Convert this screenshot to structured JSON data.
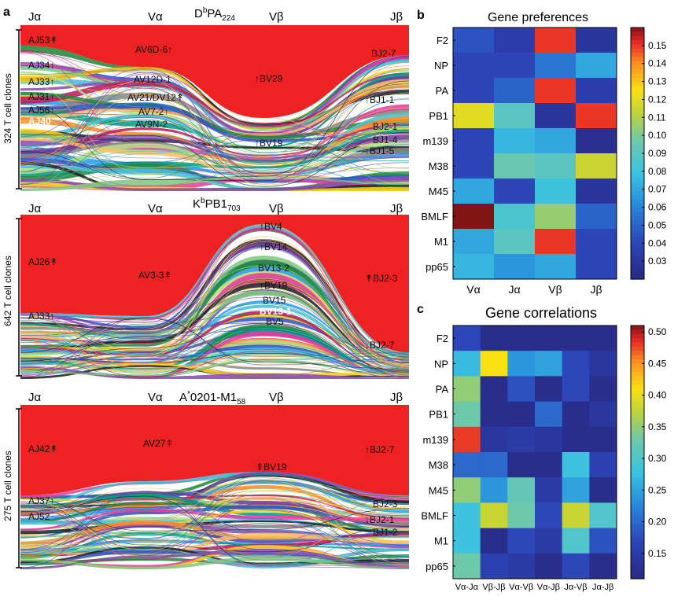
{
  "panel_a": {
    "letter": "a",
    "panels": [
      {
        "title_main": "D",
        "title_sup": "b",
        "title_rest": "PA",
        "title_sub": "224",
        "columns": [
          "Jα",
          "Vα",
          "Vβ",
          "Jβ"
        ],
        "ylabel": "324 T cell clones",
        "labels": [
          {
            "col": "Ja",
            "text": "AJ53",
            "arrows": "↟"
          },
          {
            "col": "Ja",
            "text": "AJ34",
            "arrows": "↑"
          },
          {
            "col": "Ja",
            "text": "AJ33",
            "arrows": "↑"
          },
          {
            "col": "Ja",
            "text": "AJ31",
            "arrows": "↑"
          },
          {
            "col": "Ja",
            "text": "AJ56",
            "arrows": "↑"
          },
          {
            "col": "Ja",
            "text": "AJ40",
            "arrows": ""
          },
          {
            "col": "Va",
            "text": "AV6D-6",
            "arrows": "↑"
          },
          {
            "col": "Va",
            "text": "AV12D-1",
            "arrows": ""
          },
          {
            "col": "Va",
            "text": "AV21/DV12",
            "arrows": "↟"
          },
          {
            "col": "Va",
            "text": "AV7-2",
            "arrows": "↑"
          },
          {
            "col": "Va",
            "text": "AV9N-2",
            "arrows": ""
          },
          {
            "col": "Vb",
            "text": "BV29",
            "arrows": "↑"
          },
          {
            "col": "Vb",
            "text": "BV19",
            "arrows": "↑"
          },
          {
            "col": "Jb",
            "text": "BJ2-7",
            "arrows": ""
          },
          {
            "col": "Jb",
            "text": "BJ1-1",
            "arrows": "↑"
          },
          {
            "col": "Jb",
            "text": "BJ2-1",
            "arrows": ""
          },
          {
            "col": "Jb",
            "text": "BJ1-4",
            "arrows": ""
          },
          {
            "col": "Jb",
            "text": "BJ1-5",
            "arrows": "↑"
          }
        ]
      },
      {
        "title_main": "K",
        "title_sup": "b",
        "title_rest": "PB1",
        "title_sub": "703",
        "columns": [
          "Jα",
          "Vα",
          "Vβ",
          "Jβ"
        ],
        "ylabel": "642 T cell clones",
        "labels": [
          {
            "col": "Ja",
            "text": "AJ26",
            "arrows": "↟"
          },
          {
            "col": "Ja",
            "text": "AJ33",
            "arrows": "↑"
          },
          {
            "col": "Va",
            "text": "AV3-3",
            "arrows": "⇞"
          },
          {
            "col": "Vb",
            "text": "BV4",
            "arrows": "↑"
          },
          {
            "col": "Vb",
            "text": "BV14",
            "arrows": "↑"
          },
          {
            "col": "Vb",
            "text": "BV13-2",
            "arrows": ""
          },
          {
            "col": "Vb",
            "text": "BV19",
            "arrows": "↑"
          },
          {
            "col": "Vb",
            "text": "BV15",
            "arrows": ""
          },
          {
            "col": "Vb",
            "text": "BV13-1",
            "arrows": ""
          },
          {
            "col": "Vb",
            "text": "BV5",
            "arrows": ""
          },
          {
            "col": "Jb",
            "text": "BJ2-3",
            "arrows": "↟"
          },
          {
            "col": "Jb",
            "text": "BJ2-7",
            "arrows": "↓"
          }
        ]
      },
      {
        "title_main": "A",
        "title_sup": "*",
        "title_rest": "0201-M1",
        "title_sub": "58",
        "columns": [
          "Jα",
          "Vα",
          "Vβ",
          "Jβ"
        ],
        "ylabel": "275 T cell clones",
        "labels": [
          {
            "col": "Ja",
            "text": "AJ42",
            "arrows": "↟"
          },
          {
            "col": "Ja",
            "text": "AJ37",
            "arrows": "↑"
          },
          {
            "col": "Ja",
            "text": "AJ52",
            "arrows": ""
          },
          {
            "col": "Va",
            "text": "AV27",
            "arrows": "⇞"
          },
          {
            "col": "Vb",
            "text": "BV19",
            "arrows": "⇞"
          },
          {
            "col": "Jb",
            "text": "BJ2-7",
            "arrows": "↑"
          },
          {
            "col": "Jb",
            "text": "BJ2-3",
            "arrows": ""
          },
          {
            "col": "Jb",
            "text": "BJ2-1",
            "arrows": "↓"
          },
          {
            "col": "Jb",
            "text": "BJ1-2",
            "arrows": ""
          }
        ]
      }
    ]
  },
  "panel_b": {
    "letter": "b",
    "title": "Gene preferences",
    "rows": [
      "F2",
      "NP",
      "PA",
      "PB1",
      "m139",
      "M38",
      "M45",
      "BMLF",
      "M1",
      "pp65"
    ],
    "cols": [
      "Vα",
      "Jα",
      "Vβ",
      "Jβ"
    ],
    "colorbar_ticks": [
      "0.15",
      "0.14",
      "0.13",
      "0.12",
      "0.11",
      "0.10",
      "0.09",
      "0.08",
      "0.07",
      "0.06",
      "0.05",
      "0.04",
      "0.03"
    ]
  },
  "panel_c": {
    "letter": "c",
    "title": "Gene correlations",
    "rows": [
      "F2",
      "NP",
      "PA",
      "PB1",
      "m139",
      "M38",
      "M45",
      "BMLF",
      "M1",
      "pp65"
    ],
    "cols": [
      "Vα-Jα",
      "Vβ-Jβ",
      "Vα-Vβ",
      "Vα-Jβ",
      "Jα-Vβ",
      "Jα-Jβ"
    ],
    "colorbar_ticks": [
      "0.50",
      "0.45",
      "0.40",
      "0.35",
      "0.30",
      "0.25",
      "0.20",
      "0.15"
    ]
  },
  "chart_data": [
    {
      "type": "heatmap",
      "title": "Gene preferences",
      "rows": [
        "F2",
        "NP",
        "PA",
        "PB1",
        "m139",
        "M38",
        "M45",
        "BMLF",
        "M1",
        "pp65"
      ],
      "cols": [
        "Vα",
        "Jα",
        "Vβ",
        "Jβ"
      ],
      "values": [
        [
          0.045,
          0.035,
          0.15,
          0.03
        ],
        [
          0.04,
          0.04,
          0.055,
          0.07
        ],
        [
          0.04,
          0.05,
          0.15,
          0.035
        ],
        [
          0.12,
          0.09,
          0.03,
          0.15
        ],
        [
          0.04,
          0.075,
          0.07,
          0.025
        ],
        [
          0.04,
          0.095,
          0.09,
          0.115
        ],
        [
          0.07,
          0.04,
          0.08,
          0.03
        ],
        [
          0.16,
          0.085,
          0.105,
          0.05
        ],
        [
          0.07,
          0.09,
          0.15,
          0.04
        ],
        [
          0.075,
          0.065,
          0.07,
          0.04
        ]
      ],
      "colorbar_range": [
        0.02,
        0.16
      ]
    },
    {
      "type": "heatmap",
      "title": "Gene correlations",
      "rows": [
        "F2",
        "NP",
        "PA",
        "PB1",
        "m139",
        "M38",
        "M45",
        "BMLF",
        "M1",
        "pp65"
      ],
      "cols": [
        "Vα-Jα",
        "Vβ-Jβ",
        "Vα-Vβ",
        "Vα-Jβ",
        "Jα-Vβ",
        "Jα-Jβ"
      ],
      "values": [
        [
          0.17,
          0.12,
          0.12,
          0.12,
          0.12,
          0.12
        ],
        [
          0.27,
          0.41,
          0.24,
          0.25,
          0.17,
          0.14
        ],
        [
          0.35,
          0.12,
          0.18,
          0.12,
          0.17,
          0.12
        ],
        [
          0.33,
          0.12,
          0.12,
          0.2,
          0.12,
          0.14
        ],
        [
          0.48,
          0.14,
          0.15,
          0.14,
          0.12,
          0.12
        ],
        [
          0.2,
          0.2,
          0.12,
          0.12,
          0.28,
          0.16
        ],
        [
          0.35,
          0.24,
          0.32,
          0.15,
          0.25,
          0.12
        ],
        [
          0.28,
          0.38,
          0.33,
          0.17,
          0.38,
          0.3
        ],
        [
          0.28,
          0.12,
          0.17,
          0.15,
          0.3,
          0.18
        ],
        [
          0.33,
          0.16,
          0.15,
          0.12,
          0.17,
          0.12
        ]
      ],
      "colorbar_range": [
        0.11,
        0.51
      ]
    }
  ]
}
